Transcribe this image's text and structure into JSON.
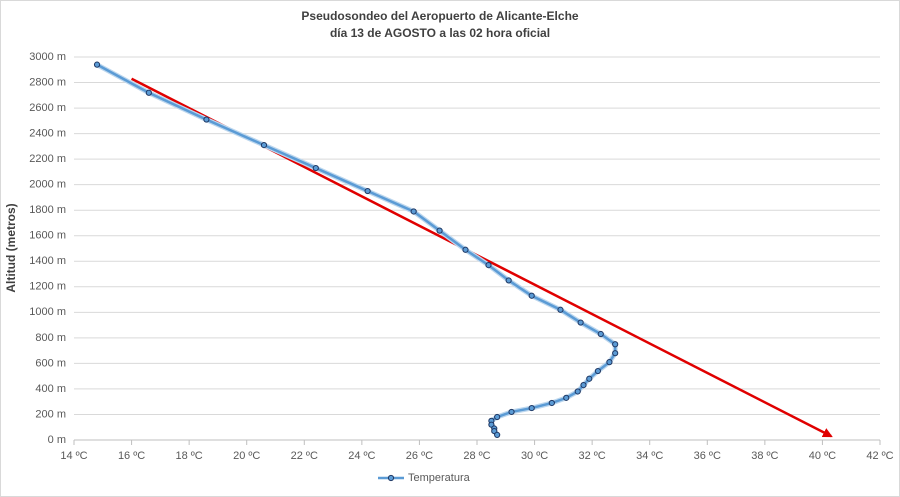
{
  "chart_data": {
    "type": "line",
    "title": "Pseudosondeo del Aeropuerto de Alicante-Elche",
    "subtitle": "día 13 de AGOSTO a las 02 hora oficial",
    "y_label": "Altitud (metros)",
    "series": [
      {
        "name": "Temperatura",
        "color": "#5b9bd5",
        "x": [
          14.8,
          16.6,
          18.6,
          20.6,
          22.4,
          24.2,
          25.8,
          26.7,
          27.6,
          28.4,
          29.1,
          29.9,
          30.9,
          31.6,
          32.3,
          32.8,
          32.8,
          32.6,
          32.2,
          31.9,
          31.7,
          31.5,
          31.1,
          30.6,
          29.9,
          29.2,
          28.7,
          28.5,
          28.5,
          28.6,
          28.6,
          28.7
        ],
        "values": [
          2940,
          2720,
          2510,
          2310,
          2130,
          1950,
          1790,
          1640,
          1490,
          1370,
          1250,
          1130,
          1020,
          920,
          830,
          750,
          680,
          610,
          540,
          480,
          430,
          380,
          330,
          290,
          250,
          220,
          180,
          150,
          120,
          90,
          70,
          40
        ]
      }
    ],
    "arrow": {
      "color": "#e00000",
      "x": [
        16,
        40.3
      ],
      "values": [
        2830,
        30
      ]
    },
    "xlim": [
      14,
      42
    ],
    "xticks": [
      {
        "value": 14,
        "label": "14 ºC"
      },
      {
        "value": 16,
        "label": "16 ºC"
      },
      {
        "value": 18,
        "label": "18 ºC"
      },
      {
        "value": 20,
        "label": "20 ºC"
      },
      {
        "value": 22,
        "label": "22 ºC"
      },
      {
        "value": 24,
        "label": "24 ºC"
      },
      {
        "value": 26,
        "label": "26 ºC"
      },
      {
        "value": 28,
        "label": "28 ºC"
      },
      {
        "value": 30,
        "label": "30 ºC"
      },
      {
        "value": 32,
        "label": "32 ºC"
      },
      {
        "value": 34,
        "label": "34 ºC"
      },
      {
        "value": 36,
        "label": "36 ºC"
      },
      {
        "value": 38,
        "label": "38 ºC"
      },
      {
        "value": 40,
        "label": "40 ºC"
      },
      {
        "value": 42,
        "label": "42 ºC"
      }
    ],
    "ylim": [
      0,
      3000
    ],
    "yticks": [
      {
        "value": 0,
        "label": "0 m"
      },
      {
        "value": 200,
        "label": "200 m"
      },
      {
        "value": 400,
        "label": "400 m"
      },
      {
        "value": 600,
        "label": "600 m"
      },
      {
        "value": 800,
        "label": "800 m"
      },
      {
        "value": 1000,
        "label": "1000 m"
      },
      {
        "value": 1200,
        "label": "1200 m"
      },
      {
        "value": 1400,
        "label": "1400 m"
      },
      {
        "value": 1600,
        "label": "1600 m"
      },
      {
        "value": 1800,
        "label": "1800 m"
      },
      {
        "value": 2000,
        "label": "2000 m"
      },
      {
        "value": 2200,
        "label": "2200 m"
      },
      {
        "value": 2400,
        "label": "2400 m"
      },
      {
        "value": 2600,
        "label": "2600 m"
      },
      {
        "value": 2800,
        "label": "2800 m"
      },
      {
        "value": 3000,
        "label": "3000 m"
      }
    ],
    "grid": true,
    "legend": "bottom"
  }
}
